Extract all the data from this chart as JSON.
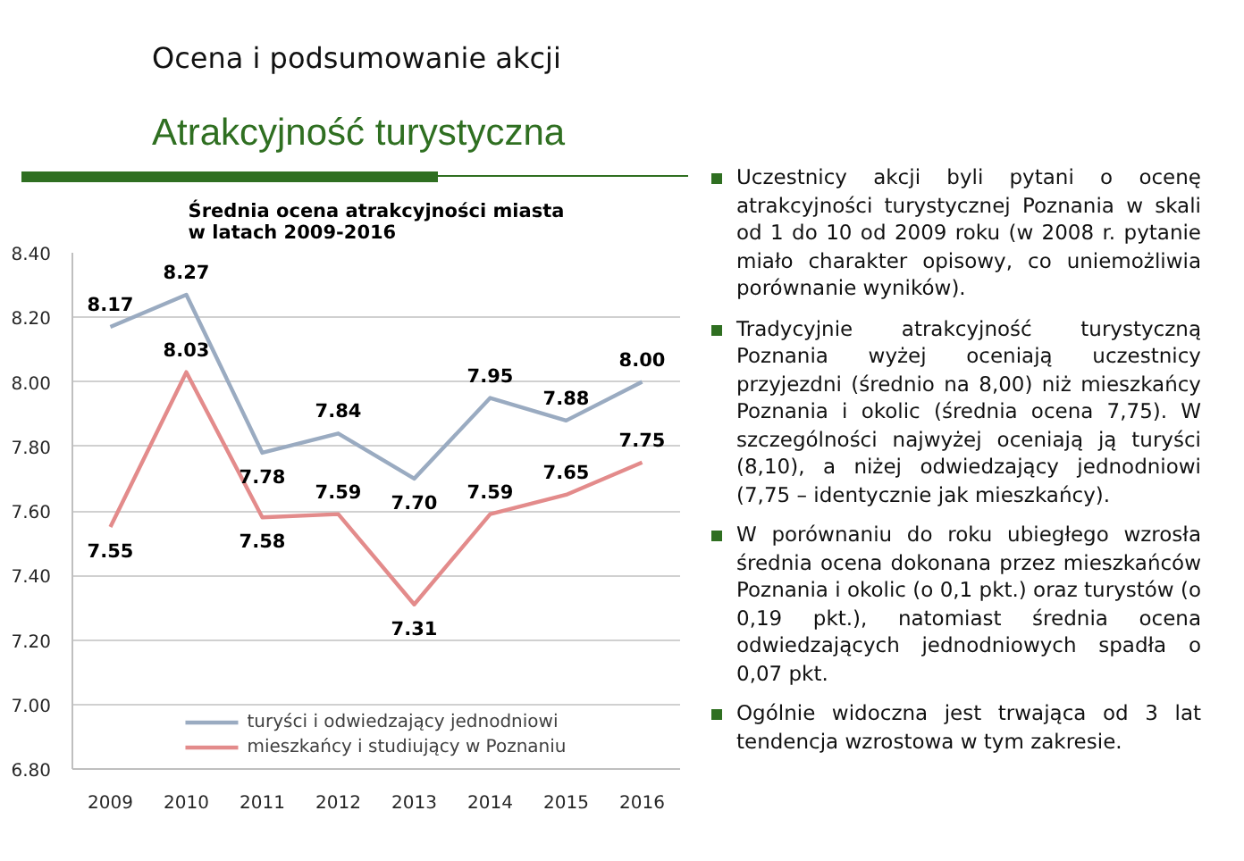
{
  "chart_data": {
    "type": "line",
    "title": "Średnia ocena atrakcyjności miasta w latach 2009-2016",
    "categories": [
      "2009",
      "2010",
      "2011",
      "2012",
      "2013",
      "2014",
      "2015",
      "2016"
    ],
    "series": [
      {
        "name": "turyści i odwiedzający jednodniowi",
        "color": "#9aabc1",
        "values": [
          8.17,
          8.27,
          7.78,
          7.84,
          7.7,
          7.95,
          7.88,
          8.0
        ],
        "value_labels": [
          "8.17",
          "8.27",
          "7.78",
          "7.84",
          "7.70",
          "7.95",
          "7.88",
          "8.00"
        ]
      },
      {
        "name": "mieszkańcy i studiujący w Poznaniu",
        "color": "#e38b8b",
        "values": [
          7.55,
          8.03,
          7.58,
          7.59,
          7.31,
          7.59,
          7.65,
          7.75
        ],
        "value_labels": [
          "7.55",
          "8.03",
          "7.58",
          "7.59",
          "7.31",
          "7.59",
          "7.65",
          "7.75"
        ]
      }
    ],
    "ylim": [
      6.8,
      8.4
    ],
    "yticks": [
      {
        "value": 6.8,
        "label": "6.80"
      },
      {
        "value": 7.0,
        "label": "7.00"
      },
      {
        "value": 7.2,
        "label": "7.20"
      },
      {
        "value": 7.4,
        "label": "7.40"
      },
      {
        "value": 7.6,
        "label": "7.60"
      },
      {
        "value": 7.8,
        "label": "7.80"
      },
      {
        "value": 8.0,
        "label": "8.00"
      },
      {
        "value": 8.2,
        "label": "8.20"
      },
      {
        "value": 8.4,
        "label": "8.40"
      }
    ],
    "grid": "y",
    "legend": "bottom",
    "annotations": [
      "Ocena i podsumowanie akcji",
      "Atrakcyjność turystyczna",
      "Uczestnicy akcji byli pytani o ocenę atrakcyjności turystycznej Poznania w skali od 1 do 10 od 2009 roku (w 2008 r. pytanie miało charakter opisowy, co uniemożliwia porównanie wyników).",
      "Tradycyjnie atrakcyjność turystyczną Poznania wyżej oceniają uczestnicy przyjezdni (średnio na 8,00) niż mieszkańcy Poznania i okolic (średnia ocena 7,75). W szczególności najwyżej oceniają ją turyści (8,10), a niżej odwiedzający jednodniowi (7,75 – identycznie jak mieszkańcy).",
      "W porównaniu do roku ubiegłego wzrosła średnia ocena dokonana przez mieszkańców Poznania i okolic (o 0,1 pkt.) oraz turystów (o 0,19 pkt.), natomiast średnia ocena odwiedzających jednodniowych spadła o 0,07 pkt.",
      "Ogólnie widoczna jest trwająca od 3 lat tendencja wzrostowa w tym zakresie."
    ]
  }
}
